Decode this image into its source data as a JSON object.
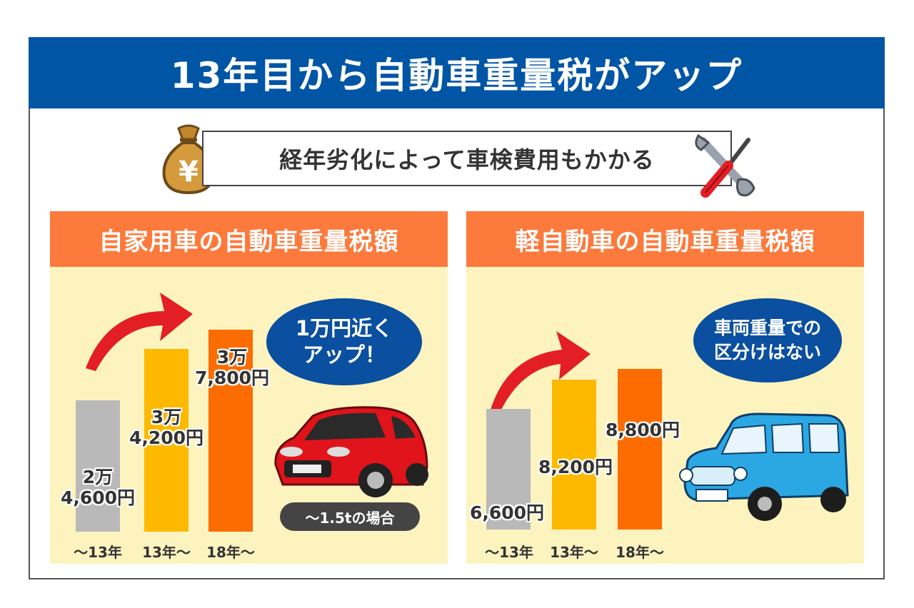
{
  "title": "13年目から自動車重量税がアップ",
  "cost_note": "経年劣化によって車検費用もかかる",
  "colors": {
    "title_bg": "#0055a5",
    "panel_head": "#fc7a3c",
    "panel_bg": "#fdf3bf",
    "bar_grey": "#b9b9b9",
    "bar_yellow": "#fcb900",
    "bar_orange": "#fc6c00",
    "arrow": "#e31e24"
  },
  "chart_data": [
    {
      "type": "bar",
      "title": "自家用車の自動車重量税額",
      "categories": [
        "～13年",
        "13年～",
        "18年～"
      ],
      "values": [
        24600,
        34200,
        37800
      ],
      "value_labels": [
        "2万\n4,600円",
        "3万\n4,200円",
        "3万\n7,800円"
      ],
      "ylim": [
        0,
        40000
      ],
      "callout": "1万円近く\nアップ！",
      "note": "～1.5tの場合"
    },
    {
      "type": "bar",
      "title": "軽自動車の自動車重量税額",
      "categories": [
        "～13年",
        "13年～",
        "18年～"
      ],
      "values": [
        6600,
        8200,
        8800
      ],
      "value_labels": [
        "6,600円",
        "8,200円",
        "8,800円"
      ],
      "ylim": [
        0,
        10000
      ],
      "callout": "車両重量での\n区分けはない"
    }
  ],
  "icons": [
    "money-bag-icon",
    "tools-icon",
    "trend-arrow-icon",
    "red-car-icon",
    "blue-car-icon"
  ],
  "yen_symbol": "¥"
}
